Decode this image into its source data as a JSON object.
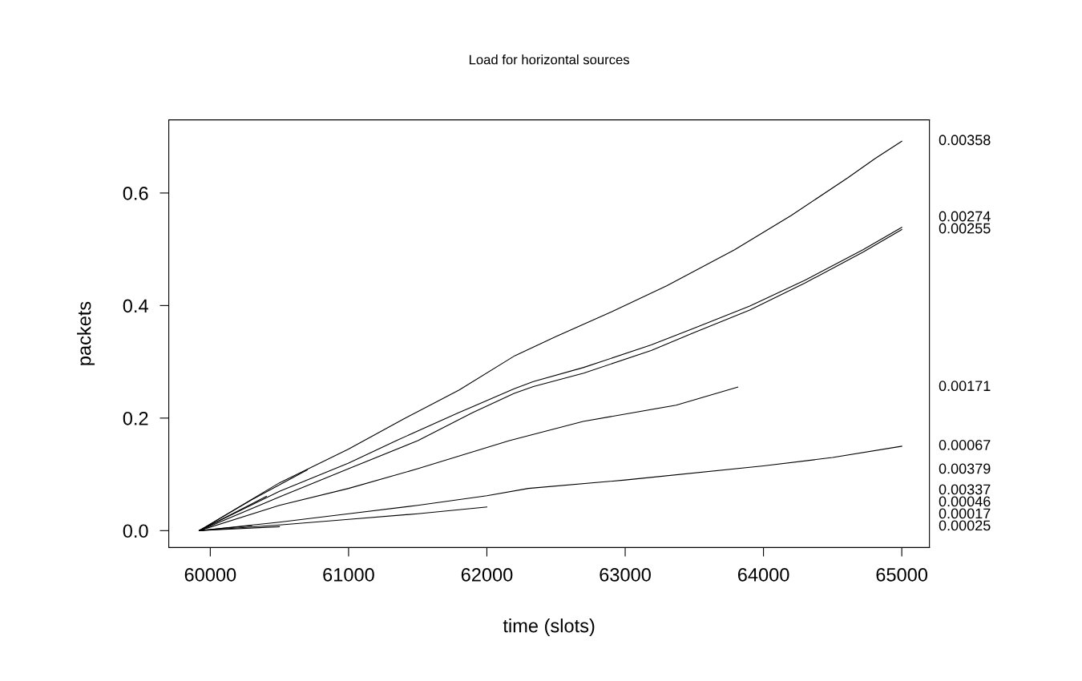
{
  "chart_data": {
    "type": "line",
    "title": "Load for horizontal sources",
    "xlabel": "time (slots)",
    "ylabel": "packets",
    "xlim": [
      59700,
      65200
    ],
    "ylim": [
      -0.03,
      0.73
    ],
    "xticks": [
      60000,
      61000,
      62000,
      63000,
      64000,
      65000
    ],
    "yticks": [
      {
        "value": 0,
        "label": "0.0"
      },
      0.2,
      0.4,
      0.6
    ],
    "grid": false,
    "legend": false,
    "marker": "none",
    "line_style": "solid",
    "series": [
      {
        "name": "0.00358",
        "color": "#000000",
        "x": [
          59920,
          60500,
          61000,
          61403,
          61800,
          62203,
          62500,
          62904,
          63300,
          63791,
          64200,
          64609,
          64806,
          65000
        ],
        "values": [
          0,
          0.085,
          0.145,
          0.199,
          0.25,
          0.311,
          0.345,
          0.389,
          0.435,
          0.499,
          0.56,
          0.627,
          0.661,
          0.692
        ]
      },
      {
        "name": "0.00274",
        "color": "#000000",
        "x": [
          59920,
          60500,
          61000,
          61345,
          61800,
          62197,
          62336,
          62700,
          63188,
          63500,
          63901,
          64300,
          64719,
          65000
        ],
        "values": [
          0,
          0.07,
          0.12,
          0.16,
          0.21,
          0.252,
          0.265,
          0.29,
          0.33,
          0.36,
          0.399,
          0.445,
          0.499,
          0.539
        ]
      },
      {
        "name": "0.00255",
        "color": "#000000",
        "x": [
          59920,
          60500,
          61000,
          61501,
          61900,
          62197,
          62336,
          62700,
          63188,
          63500,
          63901,
          64300,
          64719,
          65000
        ],
        "values": [
          0,
          0.06,
          0.11,
          0.16,
          0.21,
          0.244,
          0.256,
          0.28,
          0.32,
          0.352,
          0.392,
          0.44,
          0.495,
          0.535
        ]
      },
      {
        "name": "0.00171",
        "color": "#000000",
        "x": [
          59920,
          60500,
          61000,
          61500,
          62162,
          62696,
          63368,
          63814
        ],
        "values": [
          0,
          0.045,
          0.075,
          0.11,
          0.16,
          0.194,
          0.223,
          0.255
        ]
      },
      {
        "name": "0.00067",
        "color": "#000000",
        "x": [
          59920,
          60500,
          61000,
          61500,
          62000,
          62300,
          63000,
          64000,
          64500,
          65000
        ],
        "values": [
          0,
          0.015,
          0.03,
          0.045,
          0.062,
          0.075,
          0.09,
          0.115,
          0.13,
          0.15
        ]
      },
      {
        "name": "0.00379",
        "color": "#000000",
        "x": [
          59920,
          60300,
          60701
        ],
        "values": [
          0,
          0.055,
          0.108
        ]
      },
      {
        "name": "0.00337",
        "color": "#000000",
        "x": [
          59920,
          60200,
          60406
        ],
        "values": [
          0,
          0.035,
          0.061
        ]
      },
      {
        "name": "0.00046",
        "color": "#000000",
        "x": [
          59920,
          60500,
          61000,
          61500,
          62000
        ],
        "values": [
          0,
          0.01,
          0.02,
          0.03,
          0.042
        ]
      },
      {
        "name": "0.00017",
        "color": "#000000",
        "x": [
          59920,
          60300
        ],
        "values": [
          0,
          0.009
        ]
      },
      {
        "name": "0.00025",
        "color": "#000000",
        "x": [
          59920,
          60500
        ],
        "values": [
          0,
          0.007
        ]
      }
    ]
  }
}
